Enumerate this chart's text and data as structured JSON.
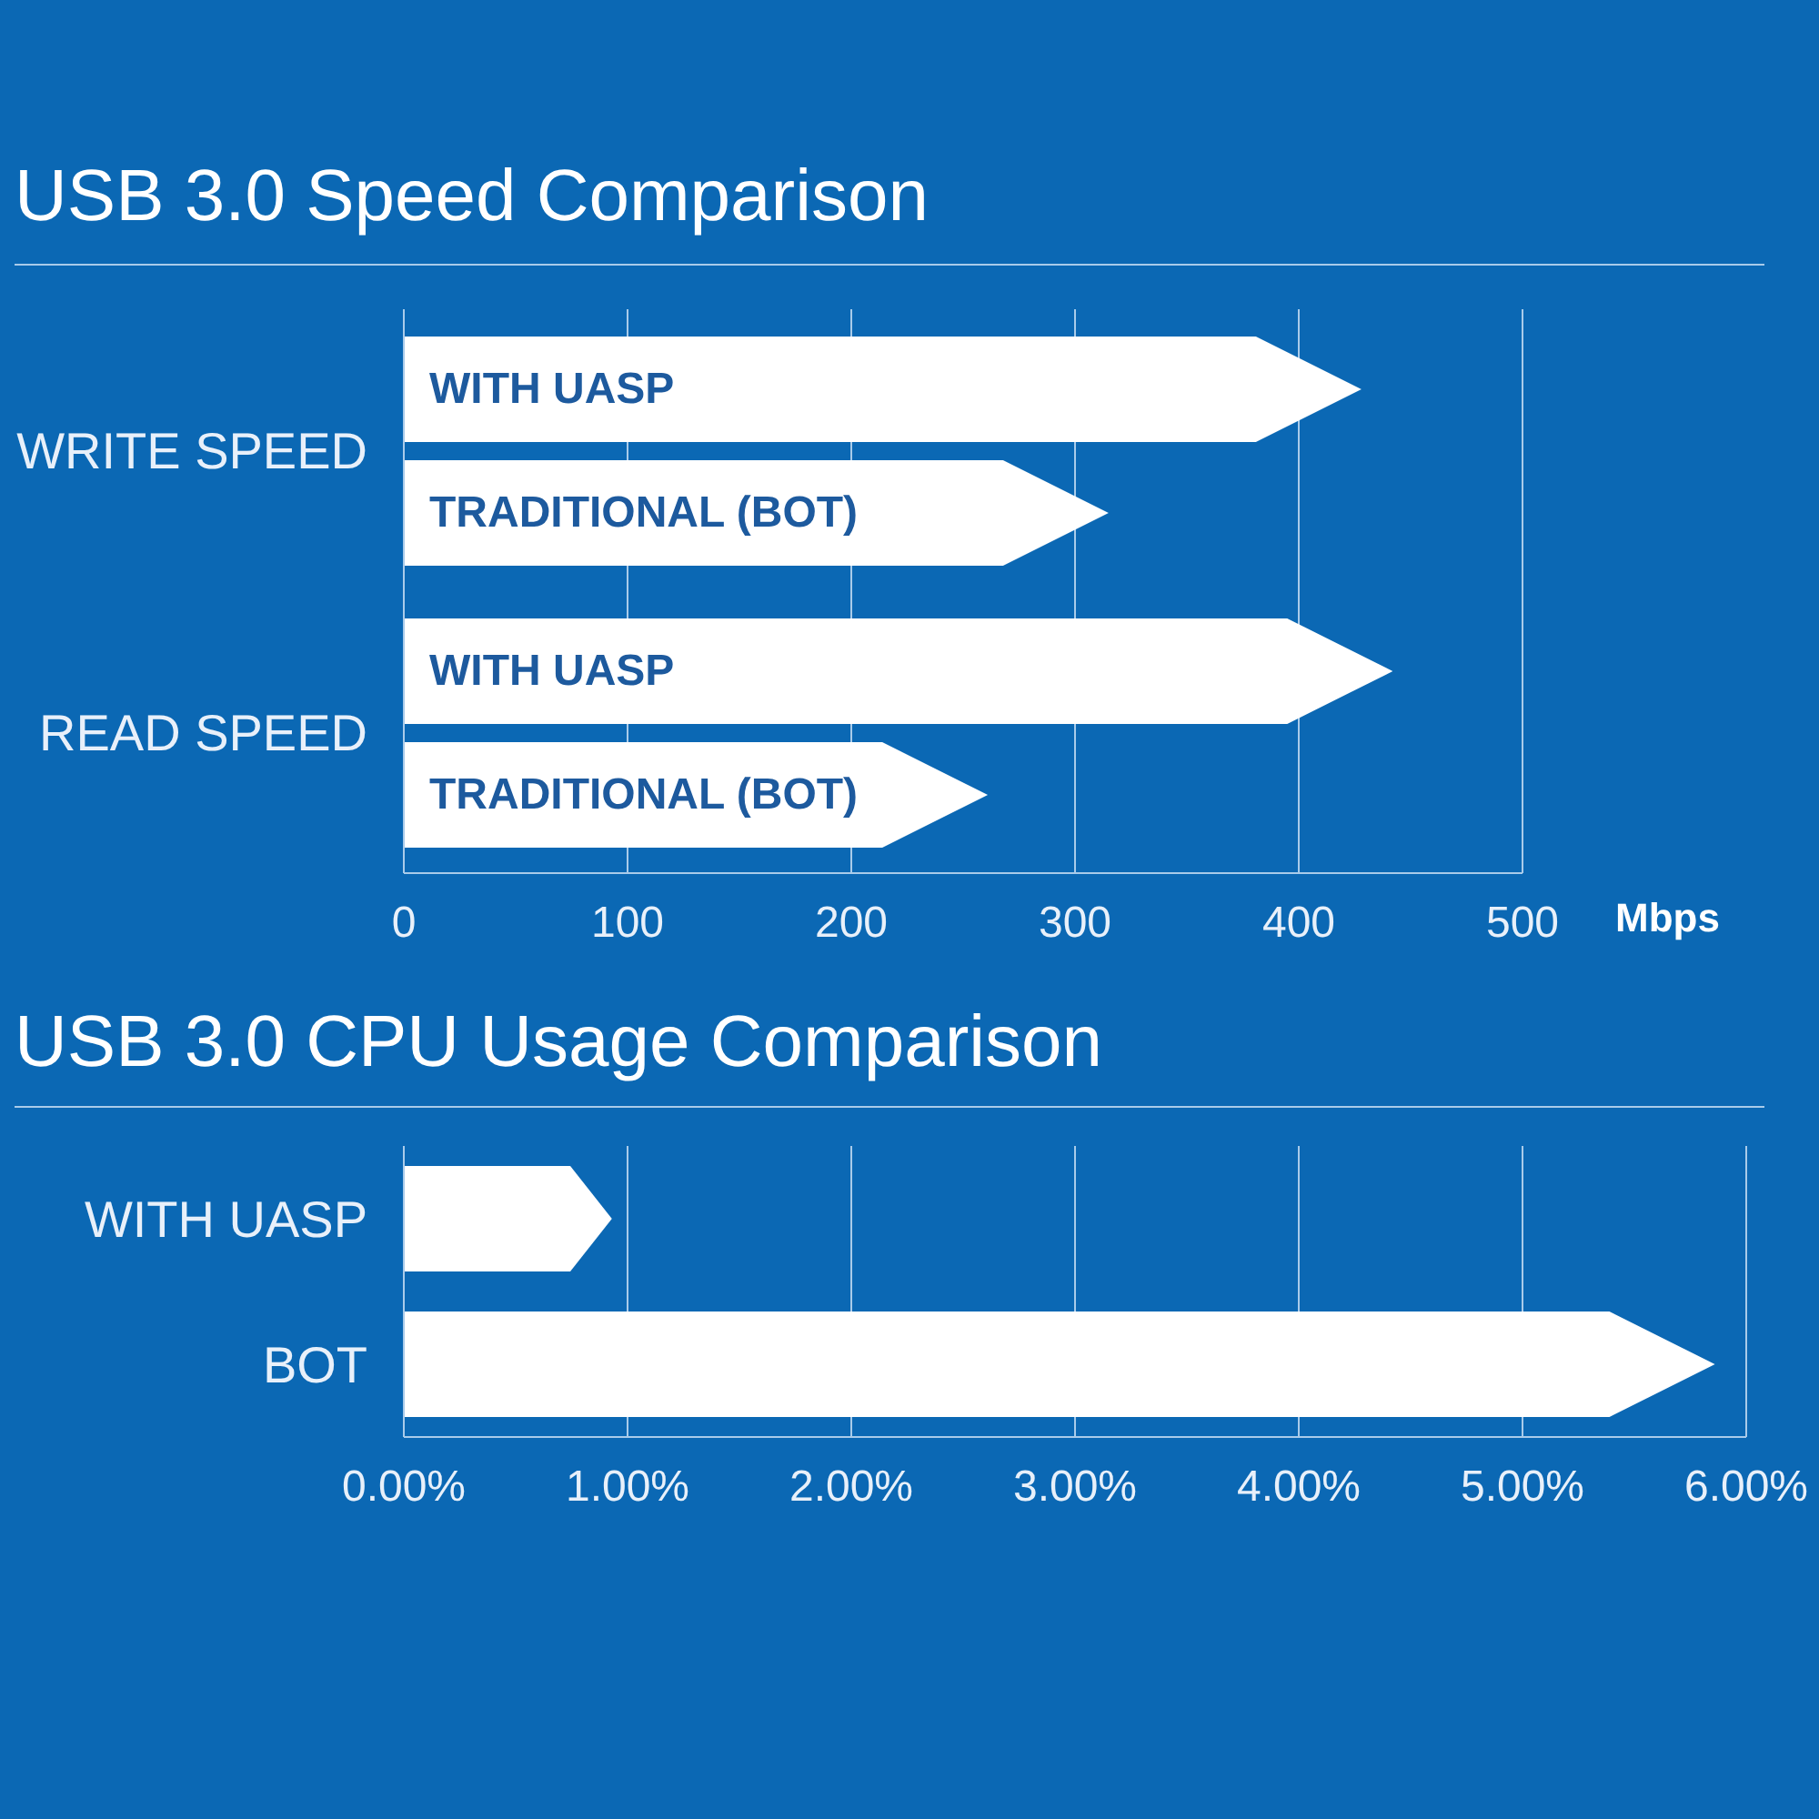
{
  "chart_data": [
    {
      "type": "bar",
      "title": "USB 3.0 Speed Comparison",
      "orientation": "horizontal",
      "categories": [
        "WRITE SPEED",
        "READ SPEED"
      ],
      "series": [
        {
          "name": "WITH UASP",
          "color": "#ffffff",
          "values": [
            428,
            442
          ]
        },
        {
          "name": "TRADITIONAL (BOT)",
          "color": "#ffffff",
          "values": [
            315,
            261
          ]
        }
      ],
      "xlabel": "Mbps",
      "xlim": [
        0,
        500
      ],
      "xticks": [
        0,
        100,
        200,
        300,
        400,
        500
      ],
      "grid": "x"
    },
    {
      "type": "bar",
      "title": "USB 3.0 CPU Usage Comparison",
      "orientation": "horizontal",
      "categories": [
        "WITH UASP",
        "BOT"
      ],
      "values": [
        0.93,
        5.86
      ],
      "color": "#ffffff",
      "xlim": [
        0,
        6
      ],
      "xticks": [
        {
          "value": 0,
          "label": "0.00%"
        },
        {
          "value": 1,
          "label": "1.00%"
        },
        {
          "value": 2,
          "label": "2.00%"
        },
        {
          "value": 3,
          "label": "3.00%"
        },
        {
          "value": 4,
          "label": "4.00%"
        },
        {
          "value": 5,
          "label": "5.00%"
        },
        {
          "value": 6,
          "label": "6.00%"
        }
      ],
      "grid": "x"
    }
  ]
}
